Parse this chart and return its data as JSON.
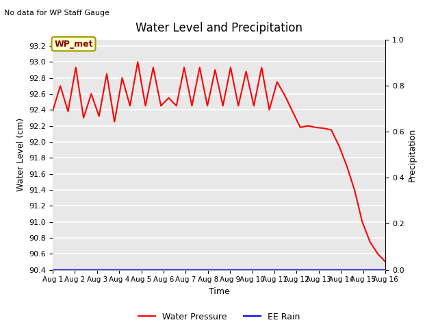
{
  "title": "Water Level and Precipitation",
  "top_left_text": "No data for WP Staff Gauge",
  "xlabel": "Time",
  "ylabel_left": "Water Level (cm)",
  "ylabel_right": "Precipitation",
  "legend_labels": [
    "Water Pressure",
    "EE Rain"
  ],
  "legend_colors": [
    "red",
    "blue"
  ],
  "wp_met_label": "WP_met",
  "ylim_left": [
    90.4,
    93.28
  ],
  "ylim_right": [
    0.0,
    1.0
  ],
  "yticks_left": [
    90.4,
    90.6,
    90.8,
    91.0,
    91.2,
    91.4,
    91.6,
    91.8,
    92.0,
    92.2,
    92.4,
    92.6,
    92.8,
    93.0,
    93.2
  ],
  "yticks_right": [
    0.0,
    0.2,
    0.4,
    0.6,
    0.8,
    1.0
  ],
  "xtick_labels": [
    "Aug 1",
    "Aug 2",
    "Aug 3",
    "Aug 4",
    "Aug 5",
    "Aug 6",
    "Aug 7",
    "Aug 8",
    "Aug 9",
    "Aug 10",
    "Aug 11",
    "Aug 12",
    "Aug 13",
    "Aug 14",
    "Aug 15",
    "Aug 16"
  ],
  "background_color": "#e8e8e8",
  "grid_color": "white",
  "line_color": "red",
  "rain_color": "blue",
  "water_pressure": [
    92.38,
    92.7,
    92.38,
    92.93,
    92.3,
    92.6,
    92.32,
    92.85,
    92.25,
    92.8,
    92.45,
    93.0,
    92.45,
    92.93,
    92.45,
    92.55,
    92.45,
    92.93,
    92.45,
    92.93,
    92.45,
    92.9,
    92.45,
    92.93,
    92.45,
    92.88,
    92.45,
    92.93,
    92.4,
    92.75,
    92.58,
    92.38,
    92.18,
    92.2,
    92.18,
    92.17,
    92.15,
    91.95,
    91.7,
    91.4,
    91.0,
    90.75,
    90.6,
    90.5
  ],
  "ee_rain": 0.0,
  "figsize": [
    6.4,
    4.8
  ],
  "dpi": 100
}
